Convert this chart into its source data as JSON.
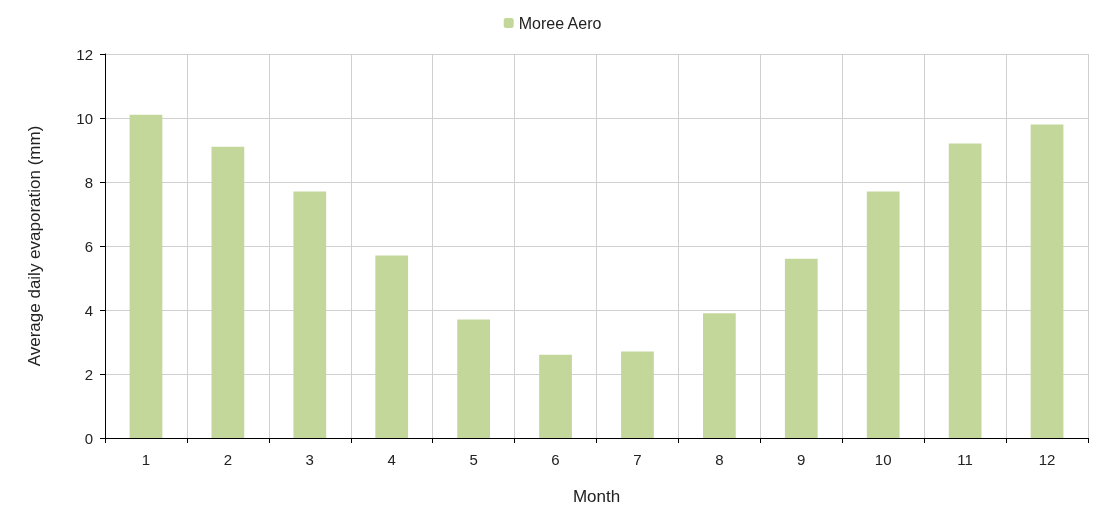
{
  "chart_data": {
    "type": "bar",
    "xlabel": "Month",
    "ylabel": "Average daily evaporation (mm)",
    "categories": [
      "1",
      "2",
      "3",
      "4",
      "5",
      "6",
      "7",
      "8",
      "9",
      "10",
      "11",
      "12"
    ],
    "series": [
      {
        "name": "Moree Aero",
        "color": "#c4d79b",
        "values": [
          10.1,
          9.1,
          7.7,
          5.7,
          3.7,
          2.6,
          2.7,
          3.9,
          5.6,
          7.7,
          9.2,
          9.8
        ]
      }
    ],
    "ylim": [
      0,
      12
    ],
    "yticks": [
      0,
      2,
      4,
      6,
      8,
      10,
      12
    ],
    "grid": true,
    "legend": "top"
  }
}
